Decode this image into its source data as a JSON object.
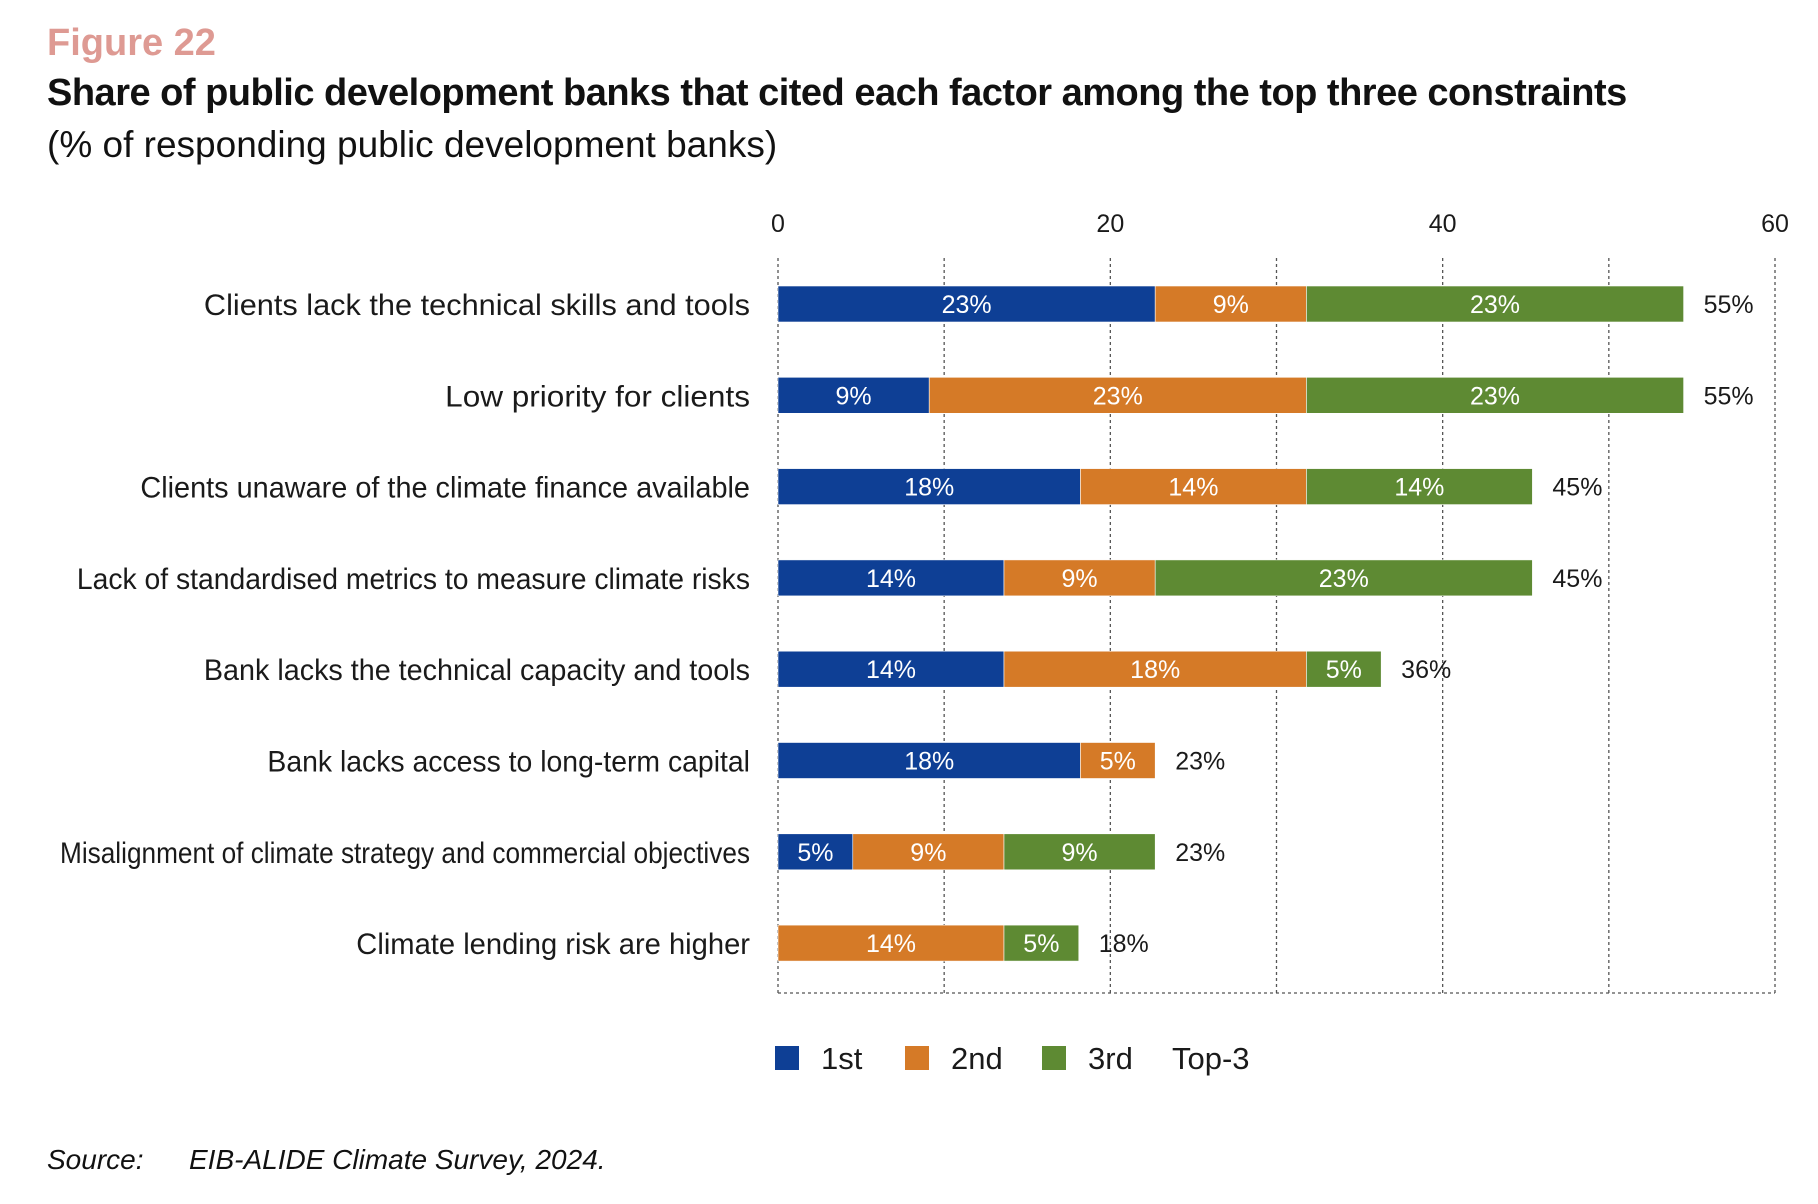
{
  "figure_label": "Figure 22",
  "source": {
    "label": "Source:",
    "text": "EIB-ALIDE Climate Survey, 2024."
  },
  "colors": {
    "first": "#0e3f95",
    "second": "#d57a27",
    "third": "#5e8a33",
    "grid": "#555555",
    "text": "#1a1a1a"
  },
  "chart_data": {
    "type": "bar",
    "orientation": "horizontal",
    "stacked": true,
    "title": "Share of public development banks that cited each factor among the top three constraints",
    "subtitle": "(% of responding public development banks)",
    "xlim": [
      0,
      60
    ],
    "xticks": [
      0,
      20,
      40,
      60
    ],
    "x_axis_position": "top",
    "grid": "vertical dashed",
    "legend_position": "bottom",
    "categories": [
      "Clients lack the technical skills and tools",
      "Low priority for clients",
      "Clients unaware of the climate finance available",
      "Lack of standardised metrics to measure climate risks",
      "Bank lacks the technical capacity and tools",
      "Bank lacks access to long-term capital",
      "Misalignment of climate strategy and commercial objectives",
      "Climate lending risk are higher"
    ],
    "series": [
      {
        "name": "1st",
        "color": "#0e3f95",
        "values": [
          22.7,
          9.1,
          18.2,
          13.6,
          13.6,
          18.2,
          4.5,
          0
        ],
        "labels": [
          "23%",
          "9%",
          "18%",
          "14%",
          "14%",
          "18%",
          "5%",
          ""
        ]
      },
      {
        "name": "2nd",
        "color": "#d57a27",
        "values": [
          9.1,
          22.7,
          13.6,
          9.1,
          18.2,
          4.5,
          9.1,
          13.6
        ],
        "labels": [
          "9%",
          "23%",
          "14%",
          "9%",
          "18%",
          "5%",
          "9%",
          "14%"
        ]
      },
      {
        "name": "3rd",
        "color": "#5e8a33",
        "values": [
          22.7,
          22.7,
          13.6,
          22.7,
          4.5,
          0,
          9.1,
          4.5
        ],
        "labels": [
          "23%",
          "23%",
          "14%",
          "23%",
          "5%",
          "",
          "9%",
          "5%"
        ]
      }
    ],
    "totals": {
      "name": "Top-3",
      "values": [
        54.5,
        54.5,
        45.4,
        45.4,
        36.3,
        22.7,
        22.7,
        18.1
      ],
      "labels": [
        "55%",
        "55%",
        "45%",
        "45%",
        "36%",
        "23%",
        "23%",
        "18%"
      ]
    }
  }
}
